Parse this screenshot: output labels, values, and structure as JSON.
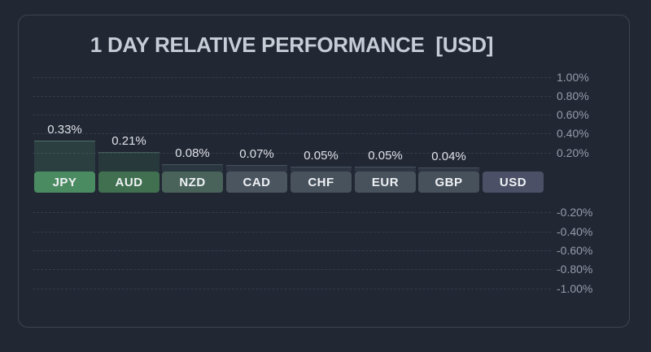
{
  "title": "1 DAY RELATIVE PERFORMANCE  [USD]",
  "colors": {
    "background": "#222734",
    "panel_border": "#3e4450",
    "title_text": "#c7cdd7",
    "gridline": "#353b49",
    "axis_label_text": "#959daa",
    "value_label_text": "#dde1e7",
    "chip_text": "#eef1f4"
  },
  "chart_data": {
    "type": "bar",
    "title": "1 DAY RELATIVE PERFORMANCE [USD]",
    "base_currency": "USD",
    "categories": [
      "JPY",
      "AUD",
      "NZD",
      "CAD",
      "CHF",
      "EUR",
      "GBP",
      "USD"
    ],
    "values": [
      0.33,
      0.21,
      0.08,
      0.07,
      0.05,
      0.05,
      0.04,
      0.0
    ],
    "unit": "%",
    "ylim": [
      -1.0,
      1.0
    ],
    "ytick_step": 0.2,
    "grid": "horizontal-dashed",
    "legend": "none",
    "axis_side": "right",
    "yticks": [
      {
        "value": 1.0,
        "label": "1.00%"
      },
      {
        "value": 0.8,
        "label": "0.80%"
      },
      {
        "value": 0.6,
        "label": "0.60%"
      },
      {
        "value": 0.4,
        "label": "0.40%"
      },
      {
        "value": 0.2,
        "label": "0.20%"
      },
      {
        "value": -0.2,
        "label": "-0.20%"
      },
      {
        "value": -0.4,
        "label": "-0.40%"
      },
      {
        "value": -0.6,
        "label": "-0.60%"
      },
      {
        "value": -0.8,
        "label": "-0.80%"
      },
      {
        "value": -1.0,
        "label": "-1.00%"
      }
    ],
    "series": [
      {
        "code": "JPY",
        "value": 0.33,
        "value_label": "0.33%",
        "chip_color": "#4b8b61",
        "bar_fill": "rgba(94,186,125,0.17)",
        "bar_edge": "rgba(150,210,170,0.32)"
      },
      {
        "code": "AUD",
        "value": 0.21,
        "value_label": "0.21%",
        "chip_color": "#40704f",
        "bar_fill": "rgba(94,186,125,0.12)",
        "bar_edge": "rgba(150,210,170,0.24)"
      },
      {
        "code": "NZD",
        "value": 0.08,
        "value_label": "0.08%",
        "chip_color": "#49635a",
        "bar_fill": "rgba(120,190,160,0.11)",
        "bar_edge": "rgba(165,210,190,0.20)"
      },
      {
        "code": "CAD",
        "value": 0.07,
        "value_label": "0.07%",
        "chip_color": "#4a5560",
        "bar_fill": "rgba(170,190,210,0.10)",
        "bar_edge": "rgba(190,205,220,0.18)"
      },
      {
        "code": "CHF",
        "value": 0.05,
        "value_label": "0.05%",
        "chip_color": "#48525d",
        "bar_fill": "rgba(170,190,210,0.10)",
        "bar_edge": "rgba(190,205,220,0.18)"
      },
      {
        "code": "EUR",
        "value": 0.05,
        "value_label": "0.05%",
        "chip_color": "#48525d",
        "bar_fill": "rgba(170,190,210,0.10)",
        "bar_edge": "rgba(190,205,220,0.18)"
      },
      {
        "code": "GBP",
        "value": 0.04,
        "value_label": "0.04%",
        "chip_color": "#47515c",
        "bar_fill": "rgba(170,190,210,0.10)",
        "bar_edge": "rgba(190,205,220,0.18)"
      },
      {
        "code": "USD",
        "value": 0.0,
        "value_label": "",
        "chip_color": "#4c5066",
        "bar_fill": "",
        "bar_edge": ""
      }
    ]
  }
}
